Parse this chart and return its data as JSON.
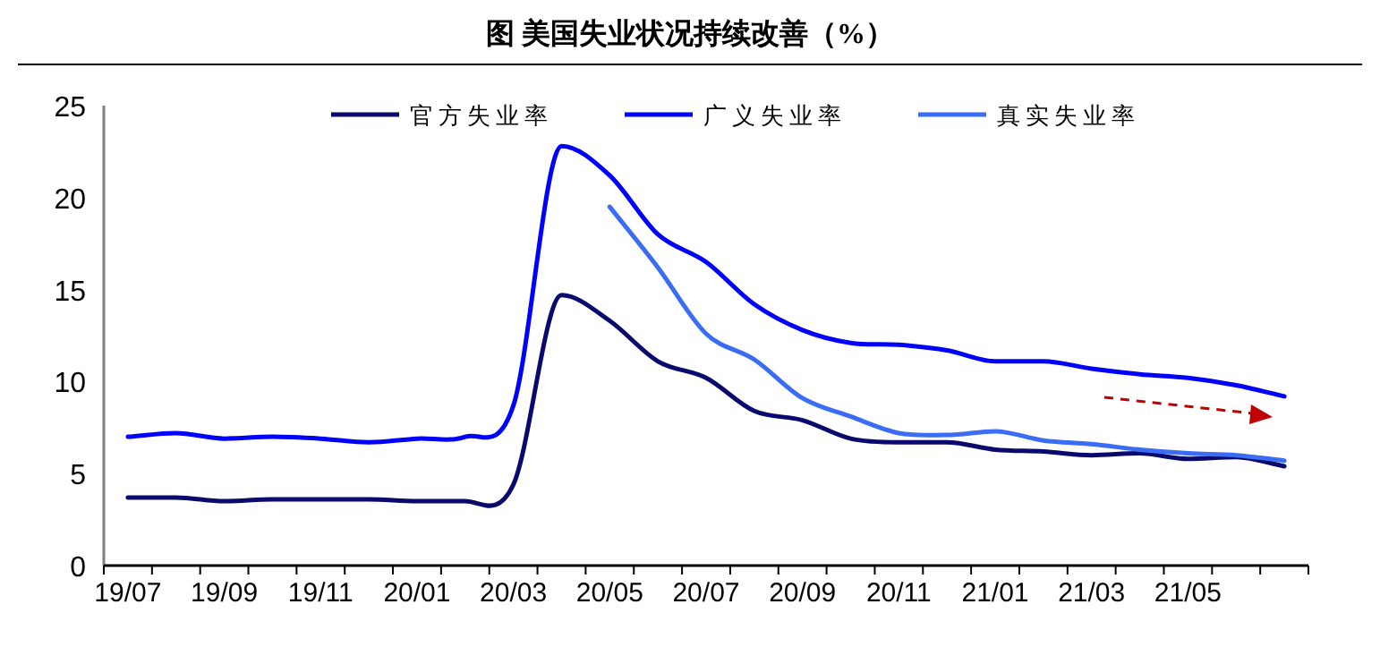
{
  "chart_data": {
    "type": "line",
    "title": "图    美国失业状况持续改善（%）",
    "categories": [
      "19/07",
      null,
      "19/09",
      null,
      "19/11",
      null,
      "20/01",
      null,
      "20/03",
      null,
      "20/05",
      null,
      "20/07",
      null,
      "20/09",
      null,
      "20/11",
      null,
      "21/01",
      null,
      "21/03",
      null,
      "21/05",
      null,
      null
    ],
    "series": [
      {
        "name": "官方失业率",
        "color": "#0a0a6e",
        "values": [
          3.7,
          3.7,
          3.5,
          3.6,
          3.6,
          3.6,
          3.5,
          3.5,
          4.4,
          14.7,
          13.3,
          11.1,
          10.2,
          8.4,
          7.9,
          6.9,
          6.7,
          6.7,
          6.3,
          6.2,
          6.0,
          6.1,
          5.8,
          5.9,
          5.4
        ]
      },
      {
        "name": "广义失业率",
        "color": "#0000ff",
        "values": [
          7.0,
          7.2,
          6.9,
          7.0,
          6.9,
          6.7,
          6.9,
          7.0,
          8.7,
          22.8,
          21.2,
          18.0,
          16.5,
          14.2,
          12.8,
          12.1,
          12.0,
          11.7,
          11.1,
          11.1,
          10.7,
          10.4,
          10.2,
          9.8,
          9.2
        ]
      },
      {
        "name": "真实失业率",
        "color": "#3a6cf5",
        "values": [
          null,
          null,
          null,
          null,
          null,
          null,
          null,
          null,
          null,
          null,
          19.5,
          16.2,
          12.6,
          11.2,
          9.1,
          8.1,
          7.2,
          7.1,
          7.3,
          6.8,
          6.6,
          6.3,
          6.1,
          6.0,
          5.7
        ]
      }
    ],
    "ylim": [
      0,
      25
    ],
    "yticks": [
      0,
      5,
      10,
      15,
      20,
      25
    ],
    "legend": "top",
    "grid": false
  }
}
